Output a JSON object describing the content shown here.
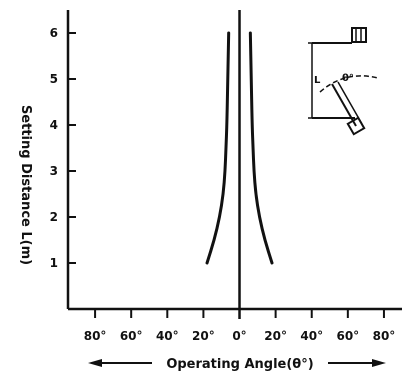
{
  "chart_data": {
    "type": "line",
    "title": "",
    "xlabel": "Operating Angle(θ°)",
    "ylabel": "Setting Distance L(m)",
    "x_tick_labels": [
      "80°",
      "60°",
      "40°",
      "20°",
      "0°",
      "20°",
      "40°",
      "60°",
      "80°"
    ],
    "x_ticks": [
      -80,
      -60,
      -40,
      -20,
      0,
      20,
      40,
      60,
      80
    ],
    "y_ticks": [
      1,
      2,
      3,
      4,
      5,
      6
    ],
    "y_tick_labels": [
      "1",
      "2",
      "3",
      "4",
      "5",
      "6"
    ],
    "xlim": [
      -95,
      90
    ],
    "ylim": [
      0,
      6.5
    ],
    "grid": false,
    "series": [
      {
        "side": "left",
        "points": [
          [
            -18,
            1
          ],
          [
            -14,
            1.5
          ],
          [
            -11,
            2
          ],
          [
            -9,
            2.5
          ],
          [
            -8,
            3
          ],
          [
            -7.5,
            3.5
          ],
          [
            -7,
            4
          ],
          [
            -6.5,
            5
          ],
          [
            -6,
            6
          ]
        ]
      },
      {
        "side": "right",
        "points": [
          [
            18,
            1
          ],
          [
            14,
            1.5
          ],
          [
            11,
            2
          ],
          [
            9,
            2.5
          ],
          [
            8,
            3
          ],
          [
            7.5,
            3.5
          ],
          [
            7,
            4
          ],
          [
            6.5,
            5
          ],
          [
            6,
            6
          ]
        ]
      }
    ],
    "diagram_labels": {
      "distance": "L",
      "angle": "θ°"
    }
  }
}
